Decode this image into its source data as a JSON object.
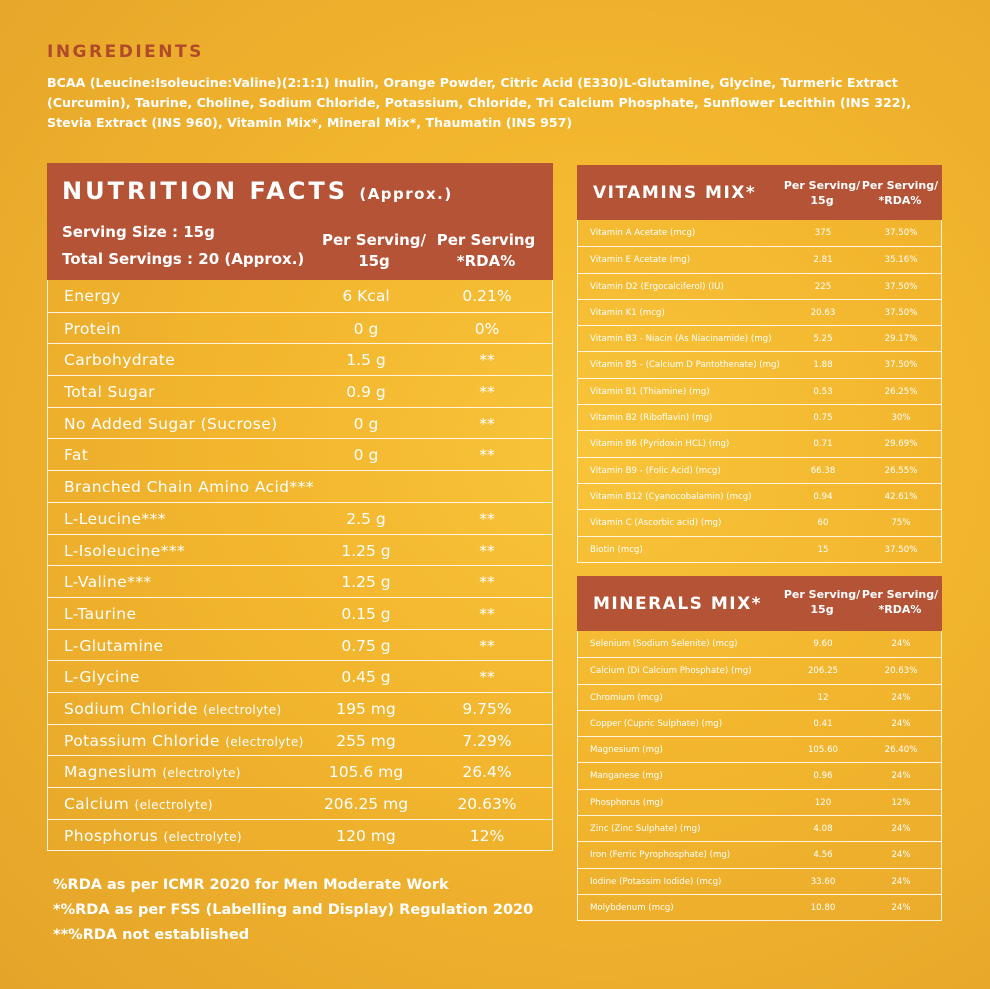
{
  "ingredients": {
    "title": "INGREDIENTS",
    "text": "BCAA (Leucine:Isoleucine:Valine)(2:1:1) Inulin, Orange Powder, Citric Acid (E330)L-Glutamine, Glycine, Turmeric Extract (Curcumin), Taurine, Choline, Sodium Chloride, Potassium, Chloride, Tri Calcium Phosphate, Sunflower Lecithin (INS 322), Stevia Extract (INS 960), Vitamin Mix*, Mineral Mix*, Thaumatin (INS 957)"
  },
  "nutrition": {
    "title": "NUTRITION FACTS",
    "title_suffix": "(Approx.)",
    "serving_size": "Serving Size : 15g",
    "total_servings": "Total Servings : 20 (Approx.)",
    "col_per_serving": "Per Serving/ 15g",
    "col_rda": "Per Serving *RDA%",
    "rows": [
      {
        "name": "Energy",
        "note": "",
        "value": "6 Kcal",
        "rda": "0.21%"
      },
      {
        "name": "Protein",
        "note": "",
        "value": "0 g",
        "rda": "0%"
      },
      {
        "name": "Carbohydrate",
        "note": "",
        "value": "1.5 g",
        "rda": "**"
      },
      {
        "name": "Total Sugar",
        "note": "",
        "value": "0.9 g",
        "rda": "**"
      },
      {
        "name": "No Added Sugar (Sucrose)",
        "note": "",
        "value": "0 g",
        "rda": "**"
      },
      {
        "name": "Fat",
        "note": "",
        "value": "0 g",
        "rda": "**"
      },
      {
        "name": "Branched Chain Amino Acid***",
        "note": "",
        "value": "",
        "rda": ""
      },
      {
        "name": "L-Leucine***",
        "note": "",
        "value": "2.5 g",
        "rda": "**"
      },
      {
        "name": "L-Isoleucine***",
        "note": "",
        "value": "1.25 g",
        "rda": "**"
      },
      {
        "name": "L-Valine***",
        "note": "",
        "value": "1.25 g",
        "rda": "**"
      },
      {
        "name": "L-Taurine",
        "note": "",
        "value": "0.15 g",
        "rda": "**"
      },
      {
        "name": "L-Glutamine",
        "note": "",
        "value": "0.75 g",
        "rda": "**"
      },
      {
        "name": "L-Glycine",
        "note": "",
        "value": "0.45 g",
        "rda": "**"
      },
      {
        "name": "Sodium Chloride ",
        "note": "(electrolyte)",
        "value": "195 mg",
        "rda": "9.75%"
      },
      {
        "name": "Potassium Chloride ",
        "note": "(electrolyte)",
        "value": "255 mg",
        "rda": "7.29%"
      },
      {
        "name": "Magnesium ",
        "note": "(electrolyte)",
        "value": "105.6 mg",
        "rda": "26.4%"
      },
      {
        "name": "Calcium ",
        "note": "(electrolyte)",
        "value": "206.25 mg",
        "rda": "20.63%"
      },
      {
        "name": "Phosphorus ",
        "note": "(electrolyte)",
        "value": "120 mg",
        "rda": "12%"
      }
    ],
    "footnotes": [
      "%RDA as per ICMR 2020 for Men Moderate Work",
      "*%RDA as per FSS (Labelling and Display) Regulation 2020",
      "**%RDA not established"
    ]
  },
  "vitamins": {
    "title": "VITAMINS MIX*",
    "col1": "Per Serving/ 15g",
    "col2": "Per Serving/ *RDA%",
    "rows": [
      {
        "name": "Vitamin A Acetate (mcg)",
        "value": "375",
        "rda": "37.50%"
      },
      {
        "name": "Vitamin E Acetate (mg)",
        "value": "2.81",
        "rda": "35.16%"
      },
      {
        "name": "Vitamin D2 (Ergocalciferol) (IU)",
        "value": "225",
        "rda": "37.50%"
      },
      {
        "name": "Vitamin K1 (mcg)",
        "value": "20.63",
        "rda": "37.50%"
      },
      {
        "name": "Vitamin B3 - Niacin (As Niacinamide) (mg)",
        "value": "5.25",
        "rda": "29.17%"
      },
      {
        "name": "Vitamin B5 - (Calcium D Pantothenate) (mg)",
        "value": "1.88",
        "rda": "37.50%"
      },
      {
        "name": "Vitamin B1 (Thiamine) (mg)",
        "value": "0.53",
        "rda": "26.25%"
      },
      {
        "name": "Vitamin B2 (Riboflavin) (mg)",
        "value": "0.75",
        "rda": "30%"
      },
      {
        "name": "Vitamin B6 (Pyridoxin HCL) (mg)",
        "value": "0.71",
        "rda": "29.69%"
      },
      {
        "name": "Vitamin B9 - (Folic Acid) (mcg)",
        "value": "66.38",
        "rda": "26.55%"
      },
      {
        "name": "Vitamin B12 (Cyanocobalamin) (mcg)",
        "value": "0.94",
        "rda": "42.61%"
      },
      {
        "name": "Vitamin C (Ascorbic acid) (mg)",
        "value": "60",
        "rda": "75%"
      },
      {
        "name": "Biotin (mcg)",
        "value": "15",
        "rda": "37.50%"
      }
    ]
  },
  "minerals": {
    "title": "MINERALS MIX*",
    "col1": "Per Serving/ 15g",
    "col2": "Per Serving/ *RDA%",
    "rows": [
      {
        "name": "Selenium (Sodium Selenite) (mcg)",
        "value": "9.60",
        "rda": "24%"
      },
      {
        "name": "Calcium (Di Calcium Phosphate) (mg)",
        "value": "206.25",
        "rda": "20.63%"
      },
      {
        "name": "Chromium (mcg)",
        "value": "12",
        "rda": "24%"
      },
      {
        "name": "Copper (Cupric Sulphate) (mg)",
        "value": "0.41",
        "rda": "24%"
      },
      {
        "name": "Magnesium (mg)",
        "value": "105.60",
        "rda": "26.40%"
      },
      {
        "name": "Manganese (mg)",
        "value": "0.96",
        "rda": "24%"
      },
      {
        "name": "Phosphorus (mg)",
        "value": "120",
        "rda": "12%"
      },
      {
        "name": "Zinc (Zinc Sulphate) (mg)",
        "value": "4.08",
        "rda": "24%"
      },
      {
        "name": "Iron (Ferric Pyrophosphate) (mg)",
        "value": "4.56",
        "rda": "24%"
      },
      {
        "name": "Iodine (Potassim Iodide) (mcg)",
        "value": "33.60",
        "rda": "24%"
      },
      {
        "name": "Molybdenum (mcg)",
        "value": "10.80",
        "rda": "24%"
      }
    ]
  },
  "colors": {
    "header_bg": "#b45336",
    "ingredients_title": "#b04a2a",
    "background": "#f2b52d"
  }
}
